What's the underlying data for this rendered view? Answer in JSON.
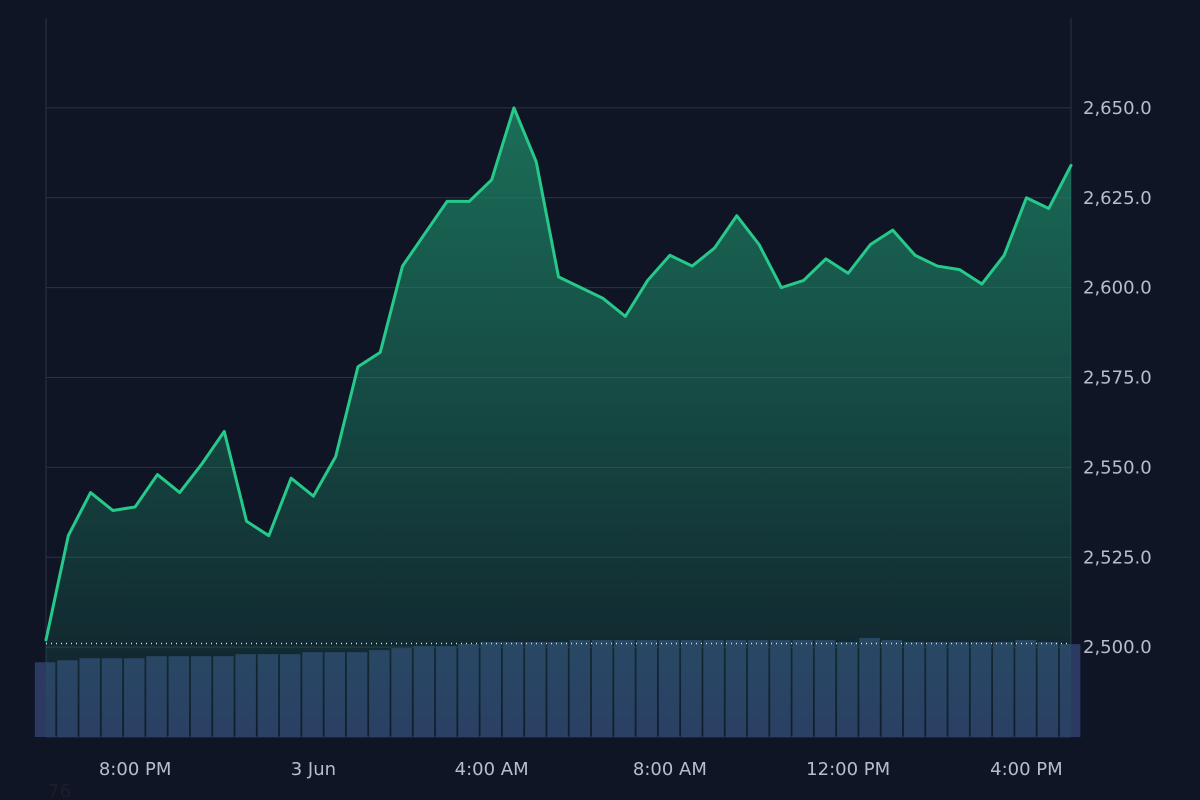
{
  "chart_data": {
    "type": "area",
    "price_series": {
      "x": [
        "6:00 PM",
        "6:30 PM",
        "7:00 PM",
        "7:30 PM",
        "8:00 PM",
        "8:30 PM",
        "9:00 PM",
        "9:30 PM",
        "10:00 PM",
        "10:30 PM",
        "11:00 PM",
        "11:30 PM",
        "3 Jun",
        "0:30 AM",
        "1:00 AM",
        "1:30 AM",
        "2:00 AM",
        "2:30 AM",
        "3:00 AM",
        "3:30 AM",
        "4:00 AM",
        "4:30 AM",
        "5:00 AM",
        "5:30 AM",
        "6:00 AM",
        "6:30 AM",
        "7:00 AM",
        "7:30 AM",
        "8:00 AM",
        "8:30 AM",
        "9:00 AM",
        "9:30 AM",
        "10:00 AM",
        "10:30 AM",
        "11:00 AM",
        "11:30 AM",
        "12:00 PM",
        "12:30 PM",
        "1:00 PM",
        "1:30 PM",
        "2:00 PM",
        "2:30 PM",
        "3:00 PM",
        "3:30 PM",
        "4:00 PM",
        "4:30 PM",
        "5:00 PM"
      ],
      "values": [
        2502,
        2531,
        2543,
        2538,
        2539,
        2548,
        2543,
        2551,
        2560,
        2535,
        2531,
        2547,
        2542,
        2553,
        2578,
        2582,
        2606,
        2615,
        2624,
        2624,
        2630,
        2650,
        2635,
        2603,
        2600,
        2597,
        2592,
        2602,
        2609,
        2606,
        2611,
        2620,
        2612,
        2600,
        2602,
        2608,
        2604,
        2612,
        2616,
        2609,
        2606,
        2605,
        2601,
        2609,
        2625,
        2622,
        2634
      ]
    },
    "volume_series": {
      "values": [
        0.37,
        0.38,
        0.39,
        0.39,
        0.39,
        0.4,
        0.4,
        0.4,
        0.4,
        0.41,
        0.41,
        0.41,
        0.42,
        0.42,
        0.42,
        0.43,
        0.44,
        0.45,
        0.45,
        0.46,
        0.47,
        0.47,
        0.47,
        0.47,
        0.48,
        0.48,
        0.48,
        0.48,
        0.48,
        0.48,
        0.48,
        0.48,
        0.48,
        0.48,
        0.48,
        0.48,
        0.47,
        0.49,
        0.48,
        0.47,
        0.47,
        0.47,
        0.47,
        0.47,
        0.48,
        0.47,
        0.46
      ]
    },
    "baseline": 2501,
    "ylim": [
      2475,
      2675
    ],
    "y_ticks": [
      "2,500.0",
      "2,525.0",
      "2,550.0",
      "2,575.0",
      "2,600.0",
      "2,625.0",
      "2,650.0"
    ],
    "y_tick_values": [
      2500,
      2525,
      2550,
      2575,
      2600,
      2625,
      2650
    ],
    "x_ticks": [
      "8:00 PM",
      "3 Jun",
      "4:00 AM",
      "8:00 AM",
      "12:00 PM",
      "4:00 PM"
    ],
    "x_tick_positions": [
      4,
      12,
      20,
      28,
      36,
      44
    ],
    "grid": true,
    "colors": {
      "background": "#0f1525",
      "price_line": "#27c98a",
      "price_fill": "#1e8c69",
      "volume": "#2d3b66",
      "grid": "#2a3346",
      "axis_text": "#b7becb",
      "baseline": "#d5d9e4"
    }
  },
  "footer": {
    "text": "76"
  }
}
